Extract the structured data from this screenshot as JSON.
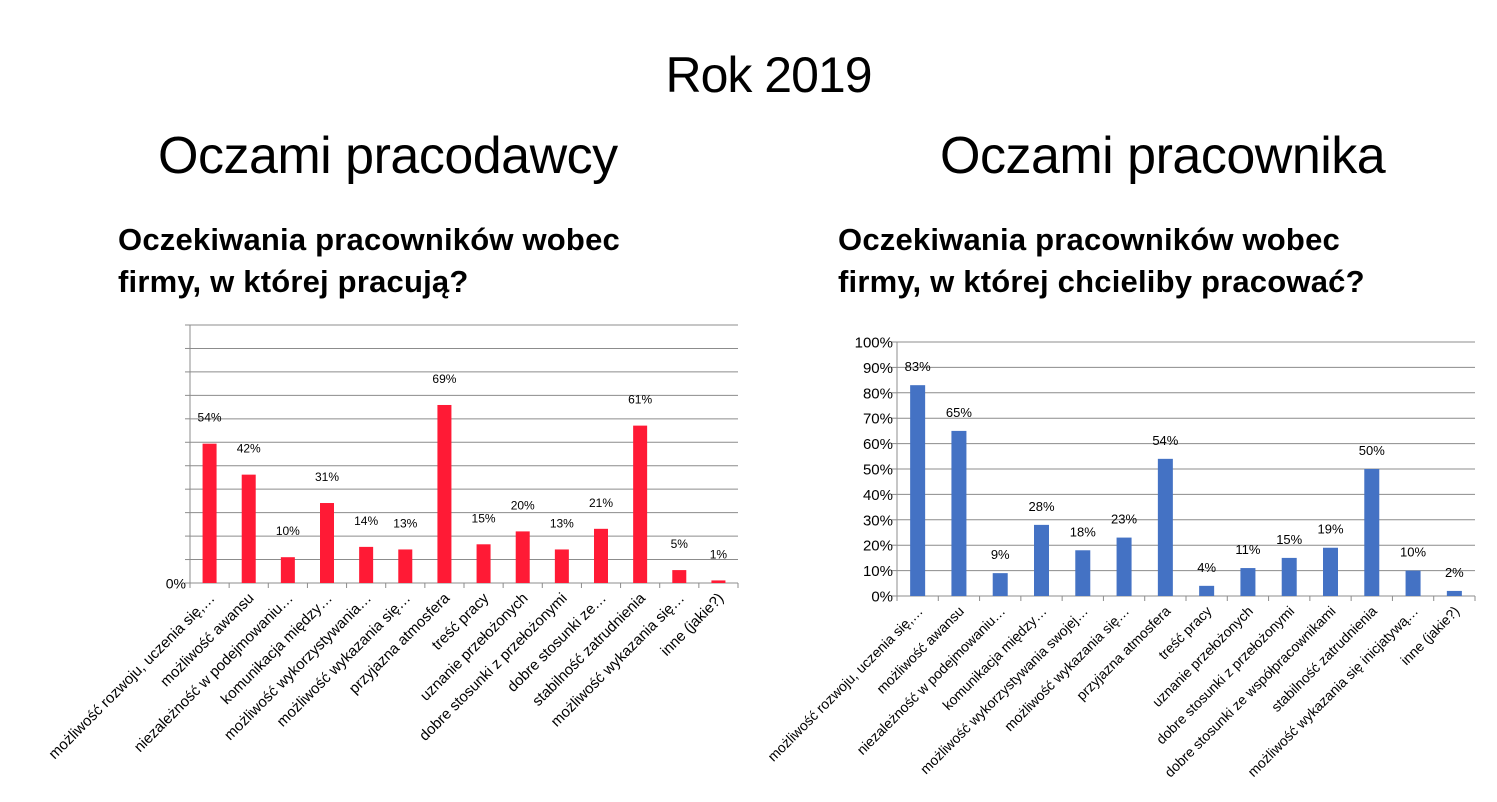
{
  "slide": {
    "title": "Rok 2019",
    "left_heading": "Oczami pracodawcy",
    "right_heading": "Oczami pracownika",
    "left_question_line1": "Oczekiwania pracowników wobec",
    "left_question_line2": "firmy, w której pracują?",
    "right_question_line1": "Oczekiwania pracowników wobec",
    "right_question_line2": "firmy, w której chcieliby pracować?"
  },
  "chart_data": [
    {
      "type": "bar",
      "categories": [
        "możliwość rozwoju, uczenia się,…",
        "możliwość awansu",
        "niezależność w podejmowaniu…",
        "komunikacja między…",
        "możliwość wykorzystywania…",
        "możliwość wykazania się…",
        "przyjazna atmosfera",
        "treść pracy",
        "uznanie przełożonych",
        "dobre stosunki z przełożonymi",
        "dobre stosunki ze…",
        "stabilność zatrudnienia",
        "możliwość wykazania się…",
        "inne (jakie?)"
      ],
      "values": [
        54,
        42,
        10,
        31,
        14,
        13,
        69,
        15,
        20,
        13,
        21,
        61,
        5,
        1
      ],
      "data_labels": [
        "54%",
        "42%",
        "10%",
        "31%",
        "14%",
        "13%",
        "69%",
        "15%",
        "20%",
        "13%",
        "21%",
        "61%",
        "5%",
        "1%"
      ],
      "y_ticks": [
        "0%"
      ],
      "ylim": [
        0,
        100
      ],
      "grid": true,
      "color": "#ff1a35"
    },
    {
      "type": "bar",
      "categories": [
        "możliwość rozwoju, uczenia się,…",
        "możliwość awansu",
        "niezależność w podejmowaniu…",
        "komunikacja między…",
        "możliwość wykorzystywania swojej…",
        "możliwość wykazania się…",
        "przyjazna atmosfera",
        "treść pracy",
        "uznanie przełożonych",
        "dobre stosunki z przełożonymi",
        "dobre stosunki ze współpracownikami",
        "stabilność zatrudnienia",
        "możliwość wykazania się inicjatywą…",
        "inne (jakie?)"
      ],
      "values": [
        83,
        65,
        9,
        28,
        18,
        23,
        54,
        4,
        11,
        15,
        19,
        50,
        10,
        2
      ],
      "data_labels": [
        "83%",
        "65%",
        "9%",
        "28%",
        "18%",
        "23%",
        "54%",
        "4%",
        "11%",
        "15%",
        "19%",
        "50%",
        "10%",
        "2%"
      ],
      "y_ticks": [
        "0%",
        "10%",
        "20%",
        "30%",
        "40%",
        "50%",
        "60%",
        "70%",
        "80%",
        "90%",
        "100%"
      ],
      "ylim": [
        0,
        100
      ],
      "grid": true,
      "color": "#4472c4"
    }
  ]
}
